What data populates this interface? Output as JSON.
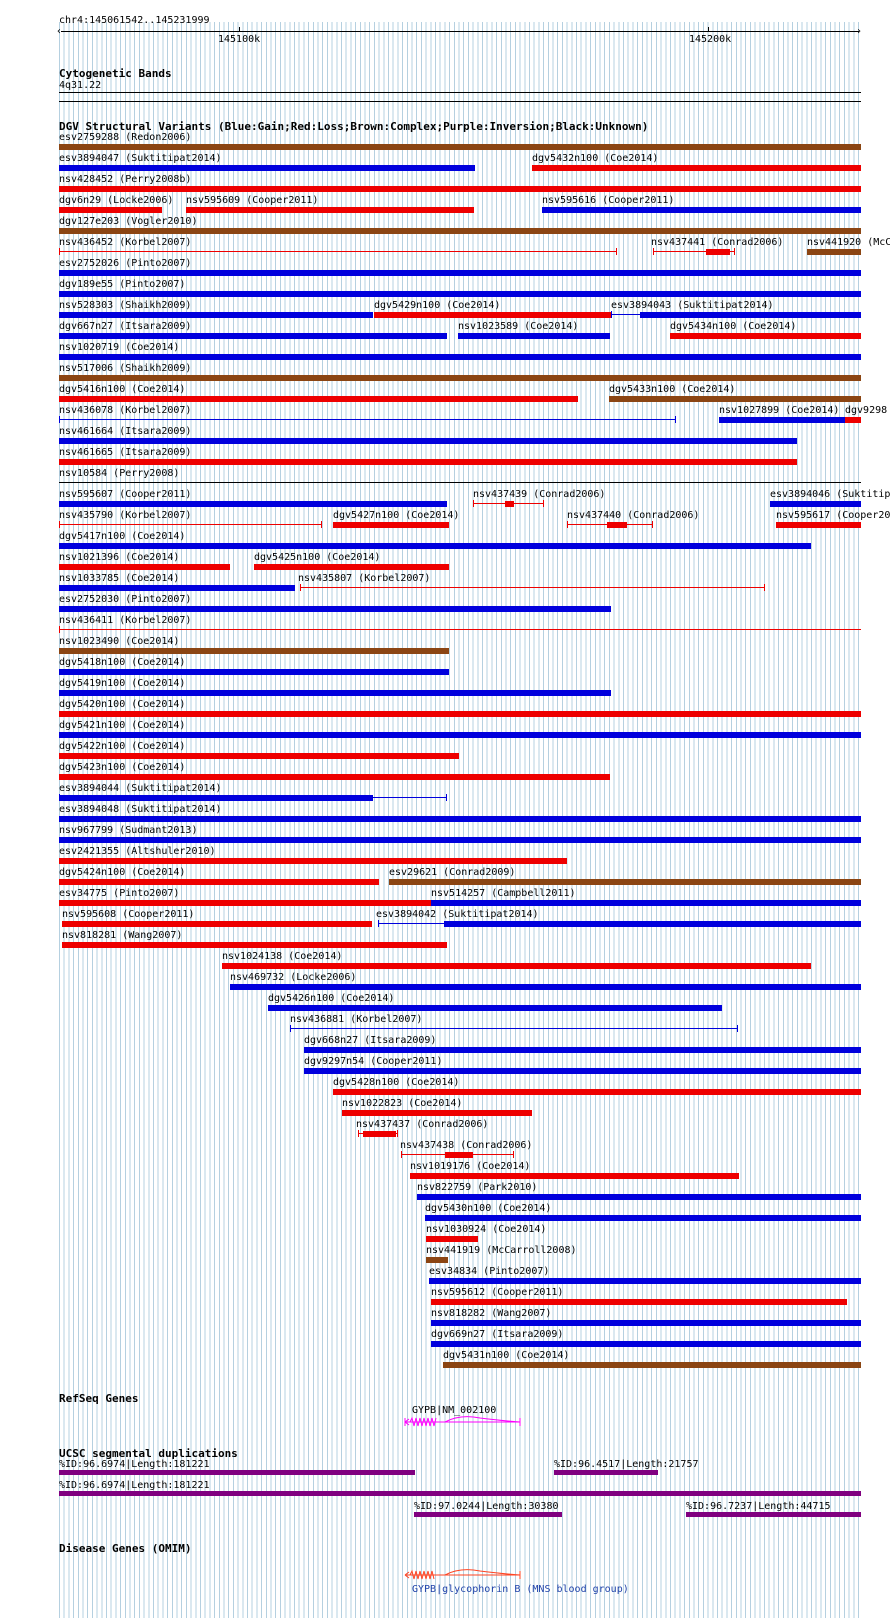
{
  "ruler": {
    "location": "chr4:145061542..145231999",
    "ticks": [
      "145100k",
      "145200k"
    ]
  },
  "cytoband": {
    "title": "Cytogenetic Bands",
    "band": "4q31.22"
  },
  "dgv": {
    "title": "DGV Structural Variants (Blue:Gain;Red:Loss;Brown:Complex;Purple:Inversion;Black:Unknown)",
    "colors": {
      "gain": "#0000dd",
      "loss": "#ee0000",
      "complex": "#8b4513",
      "inversion": "#800080",
      "unknown": "#000000"
    },
    "variants": [
      {
        "label": "esv2759288 (Redon2006)",
        "type": "complex"
      },
      {
        "label": "esv3894047 (Suktitipat2014)",
        "type": "gain"
      },
      {
        "label": "dgv5432n100 (Coe2014)",
        "type": "loss"
      },
      {
        "label": "nsv428452 (Perry2008b)",
        "type": "loss"
      },
      {
        "label": "dgv6n29 (Locke2006)",
        "type": "loss"
      },
      {
        "label": "nsv595609 (Cooper2011)",
        "type": "loss"
      },
      {
        "label": "nsv595616 (Cooper2011)",
        "type": "gain"
      },
      {
        "label": "dgv127e203 (Vogler2010)",
        "type": "complex"
      },
      {
        "label": "nsv436452 (Korbel2007)",
        "type": "loss"
      },
      {
        "label": "nsv437441 (Conrad2006)",
        "type": "loss"
      },
      {
        "label": "nsv441920 (McC",
        "type": "complex"
      },
      {
        "label": "esv2752026 (Pinto2007)",
        "type": "gain"
      },
      {
        "label": "dgv189e55 (Pinto2007)",
        "type": "gain"
      },
      {
        "label": "nsv528303 (Shaikh2009)",
        "type": "gain"
      },
      {
        "label": "dgv5429n100 (Coe2014)",
        "type": "loss"
      },
      {
        "label": "esv3894043 (Suktitipat2014)",
        "type": "gain"
      },
      {
        "label": "dgv667n27 (Itsara2009)",
        "type": "gain"
      },
      {
        "label": "nsv1023589 (Coe2014)",
        "type": "gain"
      },
      {
        "label": "dgv5434n100 (Coe2014)",
        "type": "loss"
      },
      {
        "label": "nsv1020719 (Coe2014)",
        "type": "gain"
      },
      {
        "label": "nsv517006 (Shaikh2009)",
        "type": "complex"
      },
      {
        "label": "dgv5416n100 (Coe2014)",
        "type": "loss"
      },
      {
        "label": "dgv5433n100 (Coe2014)",
        "type": "complex"
      },
      {
        "label": "nsv436078 (Korbel2007)",
        "type": "gain"
      },
      {
        "label": "nsv1027899 (Coe2014)",
        "type": "gain"
      },
      {
        "label": "dgv9298",
        "type": "loss"
      },
      {
        "label": "nsv461664 (Itsara2009)",
        "type": "gain"
      },
      {
        "label": "nsv461665 (Itsara2009)",
        "type": "loss"
      },
      {
        "label": "nsv10584 (Perry2008)",
        "type": "unknown"
      },
      {
        "label": "nsv595607 (Cooper2011)",
        "type": "gain"
      },
      {
        "label": "nsv437439 (Conrad2006)",
        "type": "loss"
      },
      {
        "label": "esv3894046 (Suktitip",
        "type": "gain"
      },
      {
        "label": "nsv435790 (Korbel2007)",
        "type": "loss"
      },
      {
        "label": "dgv5427n100 (Coe2014)",
        "type": "loss"
      },
      {
        "label": "nsv437440 (Conrad2006)",
        "type": "loss"
      },
      {
        "label": "nsv595617 (Cooper20",
        "type": "loss"
      },
      {
        "label": "dgv5417n100 (Coe2014)",
        "type": "gain"
      },
      {
        "label": "nsv1021396 (Coe2014)",
        "type": "loss"
      },
      {
        "label": "dgv5425n100 (Coe2014)",
        "type": "loss"
      },
      {
        "label": "nsv1033785 (Coe2014)",
        "type": "gain"
      },
      {
        "label": "nsv435807 (Korbel2007)",
        "type": "loss"
      },
      {
        "label": "esv2752030 (Pinto2007)",
        "type": "gain"
      },
      {
        "label": "nsv436411 (Korbel2007)",
        "type": "loss"
      },
      {
        "label": "nsv1023490 (Coe2014)",
        "type": "complex"
      },
      {
        "label": "dgv5418n100 (Coe2014)",
        "type": "gain"
      },
      {
        "label": "dgv5419n100 (Coe2014)",
        "type": "gain"
      },
      {
        "label": "dgv5420n100 (Coe2014)",
        "type": "loss"
      },
      {
        "label": "dgv5421n100 (Coe2014)",
        "type": "gain"
      },
      {
        "label": "dgv5422n100 (Coe2014)",
        "type": "loss"
      },
      {
        "label": "dgv5423n100 (Coe2014)",
        "type": "loss"
      },
      {
        "label": "esv3894044 (Suktitipat2014)",
        "type": "gain"
      },
      {
        "label": "esv3894048 (Suktitipat2014)",
        "type": "gain"
      },
      {
        "label": "nsv967799 (Sudmant2013)",
        "type": "gain"
      },
      {
        "label": "esv2421355 (Altshuler2010)",
        "type": "loss"
      },
      {
        "label": "dgv5424n100 (Coe2014)",
        "type": "loss"
      },
      {
        "label": "esv29621 (Conrad2009)",
        "type": "complex"
      },
      {
        "label": "esv34775 (Pinto2007)",
        "type": "loss"
      },
      {
        "label": "nsv514257 (Campbell2011)",
        "type": "gain"
      },
      {
        "label": "nsv595608 (Cooper2011)",
        "type": "loss"
      },
      {
        "label": "esv3894042 (Suktitipat2014)",
        "type": "gain"
      },
      {
        "label": "nsv818281 (Wang2007)",
        "type": "loss"
      },
      {
        "label": "nsv1024138 (Coe2014)",
        "type": "loss"
      },
      {
        "label": "nsv469732 (Locke2006)",
        "type": "gain"
      },
      {
        "label": "dgv5426n100 (Coe2014)",
        "type": "gain"
      },
      {
        "label": "nsv436881 (Korbel2007)",
        "type": "gain"
      },
      {
        "label": "dgv668n27 (Itsara2009)",
        "type": "gain"
      },
      {
        "label": "dgv9297n54 (Cooper2011)",
        "type": "gain"
      },
      {
        "label": "dgv5428n100 (Coe2014)",
        "type": "loss"
      },
      {
        "label": "nsv1022823 (Coe2014)",
        "type": "loss"
      },
      {
        "label": "nsv437437 (Conrad2006)",
        "type": "loss"
      },
      {
        "label": "nsv437438 (Conrad2006)",
        "type": "loss"
      },
      {
        "label": "nsv1019176 (Coe2014)",
        "type": "loss"
      },
      {
        "label": "nsv822759 (Park2010)",
        "type": "gain"
      },
      {
        "label": "dgv5430n100 (Coe2014)",
        "type": "gain"
      },
      {
        "label": "nsv1030924 (Coe2014)",
        "type": "loss"
      },
      {
        "label": "nsv441919 (McCarroll2008)",
        "type": "complex"
      },
      {
        "label": "esv34834 (Pinto2007)",
        "type": "gain"
      },
      {
        "label": "nsv595612 (Cooper2011)",
        "type": "loss"
      },
      {
        "label": "nsv818282 (Wang2007)",
        "type": "gain"
      },
      {
        "label": "dgv669n27 (Itsara2009)",
        "type": "gain"
      },
      {
        "label": "dgv5431n100 (Coe2014)",
        "type": "complex"
      }
    ]
  },
  "refseq": {
    "title": "RefSeq Genes",
    "gene": "GYPB|NM_002100",
    "color": "#ff00ff"
  },
  "segdups": {
    "title": "UCSC segmental duplications",
    "color": "#800080",
    "items": [
      "%ID:96.6974|Length:181221",
      "%ID:96.4517|Length:21757",
      "%ID:96.6974|Length:181221",
      "%ID:97.0244|Length:30380",
      "%ID:96.7237|Length:44715"
    ]
  },
  "omim": {
    "title": "Disease Genes (OMIM)",
    "gene_label": "GYPB|glycophorin B (MNS blood group)",
    "color": "#ff4422",
    "label_color": "#2244aa"
  }
}
